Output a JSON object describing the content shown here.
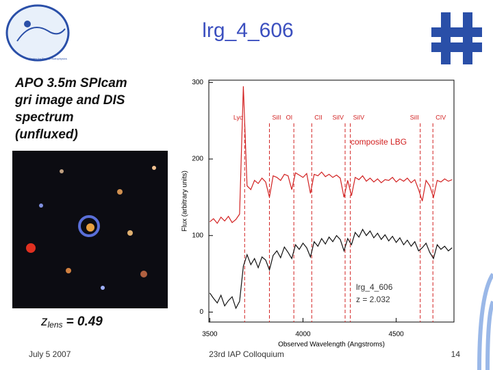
{
  "slide": {
    "title": "lrg_4_606",
    "logo_text": "Center for Particle Astrophysics",
    "caption_lines": [
      "APO 3.5m SPIcam",
      "gri image and DIS",
      "spectrum",
      "(unfluxed)"
    ],
    "z_symbol": "z",
    "z_subscript": "lens",
    "z_value": "= 0.49",
    "footer_date": "July 5 2007",
    "footer_event": "23rd IAP Colloquium",
    "page_number": "14"
  },
  "chart_data": {
    "type": "line",
    "xlabel": "Observed Wavelength (Angstroms)",
    "ylabel": "Flux (arbitrary units)",
    "xlim": [
      3495,
      4810
    ],
    "ylim": [
      -13,
      303
    ],
    "xticks": [
      3500,
      4000,
      4500
    ],
    "yticks": [
      0,
      100,
      200,
      300
    ],
    "grid": false,
    "annotations": [
      "composite LBG",
      "lrg_4_606",
      "z = 2.032"
    ],
    "lines": [
      {
        "label": "Lyα",
        "x": 3687
      },
      {
        "label": "SiII",
        "x": 3820
      },
      {
        "label": "OI",
        "x": 3951
      },
      {
        "label": "CII",
        "x": 4047
      },
      {
        "label": "SiIV",
        "x": 4226
      },
      {
        "label": "SiIV",
        "x": 4254
      },
      {
        "label": "SiII",
        "x": 4629
      },
      {
        "label": "CIV",
        "x": 4697
      }
    ],
    "line_color": "#d22020",
    "x": [
      3500,
      3520,
      3540,
      3560,
      3580,
      3600,
      3620,
      3640,
      3660,
      3680,
      3700,
      3720,
      3740,
      3760,
      3780,
      3800,
      3820,
      3840,
      3860,
      3880,
      3900,
      3920,
      3940,
      3960,
      3980,
      4000,
      4020,
      4040,
      4060,
      4080,
      4100,
      4120,
      4140,
      4160,
      4180,
      4200,
      4220,
      4240,
      4260,
      4280,
      4300,
      4320,
      4340,
      4360,
      4380,
      4400,
      4420,
      4440,
      4460,
      4480,
      4500,
      4520,
      4540,
      4560,
      4580,
      4600,
      4620,
      4640,
      4660,
      4680,
      4700,
      4720,
      4740,
      4760,
      4780,
      4800
    ],
    "series": [
      {
        "name": "composite LBG",
        "color": "#d22020",
        "values": [
          118,
          122,
          116,
          124,
          119,
          125,
          117,
          121,
          128,
          295,
          165,
          160,
          172,
          168,
          175,
          170,
          150,
          178,
          176,
          172,
          180,
          178,
          160,
          182,
          179,
          176,
          181,
          155,
          180,
          178,
          183,
          177,
          180,
          176,
          179,
          175,
          150,
          172,
          152,
          176,
          173,
          178,
          171,
          175,
          170,
          174,
          169,
          173,
          172,
          176,
          170,
          174,
          171,
          175,
          169,
          173,
          160,
          145,
          172,
          165,
          150,
          172,
          170,
          174,
          171,
          173
        ]
      },
      {
        "name": "lrg_4_606",
        "color": "#111111",
        "values": [
          25,
          18,
          12,
          22,
          8,
          15,
          20,
          5,
          14,
          60,
          75,
          62,
          70,
          58,
          72,
          68,
          55,
          74,
          80,
          71,
          85,
          78,
          70,
          88,
          82,
          90,
          84,
          72,
          92,
          86,
          96,
          89,
          98,
          92,
          100,
          95,
          80,
          96,
          88,
          104,
          98,
          108,
          100,
          106,
          97,
          103,
          95,
          101,
          93,
          99,
          91,
          97,
          88,
          94,
          86,
          92,
          80,
          84,
          90,
          78,
          70,
          88,
          82,
          86,
          80,
          84
        ]
      }
    ]
  }
}
